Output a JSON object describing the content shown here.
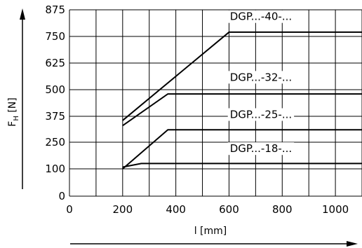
{
  "chart_data": {
    "type": "line",
    "xlabel": "l [mm]",
    "ylabel_main": "F",
    "ylabel_sub": "H",
    "ylabel_unit": " [N]",
    "xlim": [
      0,
      1100
    ],
    "ylim": [
      0,
      875
    ],
    "x_ticks": [
      0,
      200,
      400,
      600,
      800,
      1000
    ],
    "x_tick_labels": [
      "0",
      "200",
      "400",
      "600",
      "800",
      "1000"
    ],
    "y_ticks": [
      0,
      100,
      250,
      375,
      500,
      625,
      750,
      875
    ],
    "y_tick_labels": [
      "0",
      "100",
      "250",
      "375",
      "500",
      "625",
      "750",
      "875"
    ],
    "grid": true,
    "series": [
      {
        "name": "DGP...-40-...",
        "x": [
          200,
          600,
          1100
        ],
        "y": [
          355,
          770,
          770
        ],
        "label_at": [
          720,
          830
        ]
      },
      {
        "name": "DGP...-32-...",
        "x": [
          200,
          370,
          1100
        ],
        "y": [
          330,
          480,
          480
        ],
        "label_at": [
          720,
          545
        ]
      },
      {
        "name": "DGP...-25-...",
        "x": [
          200,
          370,
          1100
        ],
        "y": [
          100,
          310,
          310
        ],
        "label_at": [
          720,
          370
        ]
      },
      {
        "name": "DGP...-18-...",
        "x": [
          200,
          270,
          1100
        ],
        "y": [
          110,
          130,
          130
        ],
        "label_at": [
          720,
          198
        ]
      }
    ]
  }
}
